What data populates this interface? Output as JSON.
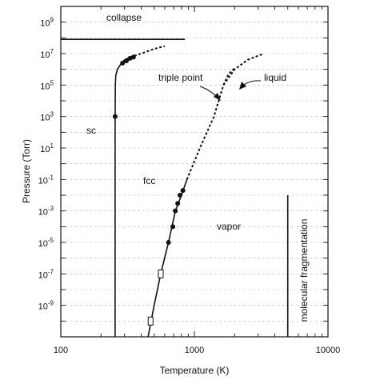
{
  "chart_data": {
    "type": "line",
    "xlabel": "Temperature (K)",
    "ylabel": "Pressure (Torr)",
    "xscale": "log",
    "yscale": "log",
    "xlim": [
      100,
      10000
    ],
    "ylim": [
      1e-11,
      10000000000.0
    ],
    "grid": "horizontal-dashed",
    "x_ticks": [
      "100",
      "1000",
      "10000"
    ],
    "y_ticks": [
      {
        "base": "10",
        "exp": "9"
      },
      {
        "base": "10",
        "exp": "7"
      },
      {
        "base": "10",
        "exp": "5"
      },
      {
        "base": "10",
        "exp": "3"
      },
      {
        "base": "10",
        "exp": "1"
      },
      {
        "base": "10",
        "exp": "-1"
      },
      {
        "base": "10",
        "exp": "-3"
      },
      {
        "base": "10",
        "exp": "-5"
      },
      {
        "base": "10",
        "exp": "-7"
      },
      {
        "base": "10",
        "exp": "-9"
      }
    ],
    "regions": [
      "sc",
      "fcc",
      "vapor"
    ],
    "annotations": {
      "collapse": "collapse",
      "triple_point": "triple point",
      "liquid": "liquid",
      "molecular_fragmentation": "molecular fragmentation"
    },
    "series": [
      {
        "style": "solid",
        "x": [
          255,
          255,
          256,
          258,
          265,
          280,
          300,
          330
        ],
        "y": [
          1e-11,
          1000.0,
          100000.0,
          400000.0,
          1000000.0,
          2000000.0,
          4000000.0,
          6000000.0
        ]
      },
      {
        "style": "dashed",
        "x": [
          330,
          400,
          500,
          600
        ],
        "y": [
          6000000.0,
          10000000.0,
          20000000.0,
          30000000.0
        ]
      },
      {
        "style": "solid",
        "x": [
          450,
          500,
          560,
          640,
          720,
          800,
          880
        ],
        "y": [
          1e-11,
          1e-09,
          1e-07,
          1e-05,
          0.001,
          0.01,
          0.1
        ]
      },
      {
        "style": "dashed",
        "x": [
          880,
          1100,
          1400,
          1650
        ],
        "y": [
          0.1,
          10.0,
          1000.0,
          100000.0
        ]
      },
      {
        "style": "dashed",
        "x": [
          1650,
          2000,
          2500,
          3300
        ],
        "y": [
          100000.0,
          1000000.0,
          4000000.0,
          10000000.0
        ]
      },
      {
        "style": "dashed",
        "x": [
          1650,
          1800,
          2000
        ],
        "y": [
          100000.0,
          500000.0,
          1200000.0
        ]
      },
      {
        "style": "solid",
        "x": [
          100,
          850
        ],
        "y": [
          80000000.0,
          80000000.0
        ]
      },
      {
        "style": "solid",
        "x": [
          5000,
          5000
        ],
        "y": [
          1e-11,
          0.01
        ]
      }
    ],
    "markers": {
      "filled": [
        {
          "x": 290,
          "y": 2500000.0
        },
        {
          "x": 310,
          "y": 3500000.0
        },
        {
          "x": 330,
          "y": 5000000.0
        },
        {
          "x": 350,
          "y": 6000000.0
        },
        {
          "x": 255,
          "y": 1000.0
        },
        {
          "x": 640,
          "y": 1e-05
        },
        {
          "x": 690,
          "y": 0.0001
        },
        {
          "x": 720,
          "y": 0.001
        },
        {
          "x": 750,
          "y": 0.003
        },
        {
          "x": 780,
          "y": 0.01
        },
        {
          "x": 820,
          "y": 0.02
        }
      ],
      "open": [
        {
          "x": 560,
          "y": 1e-07
        },
        {
          "x": 470,
          "y": 1e-10
        }
      ]
    }
  }
}
